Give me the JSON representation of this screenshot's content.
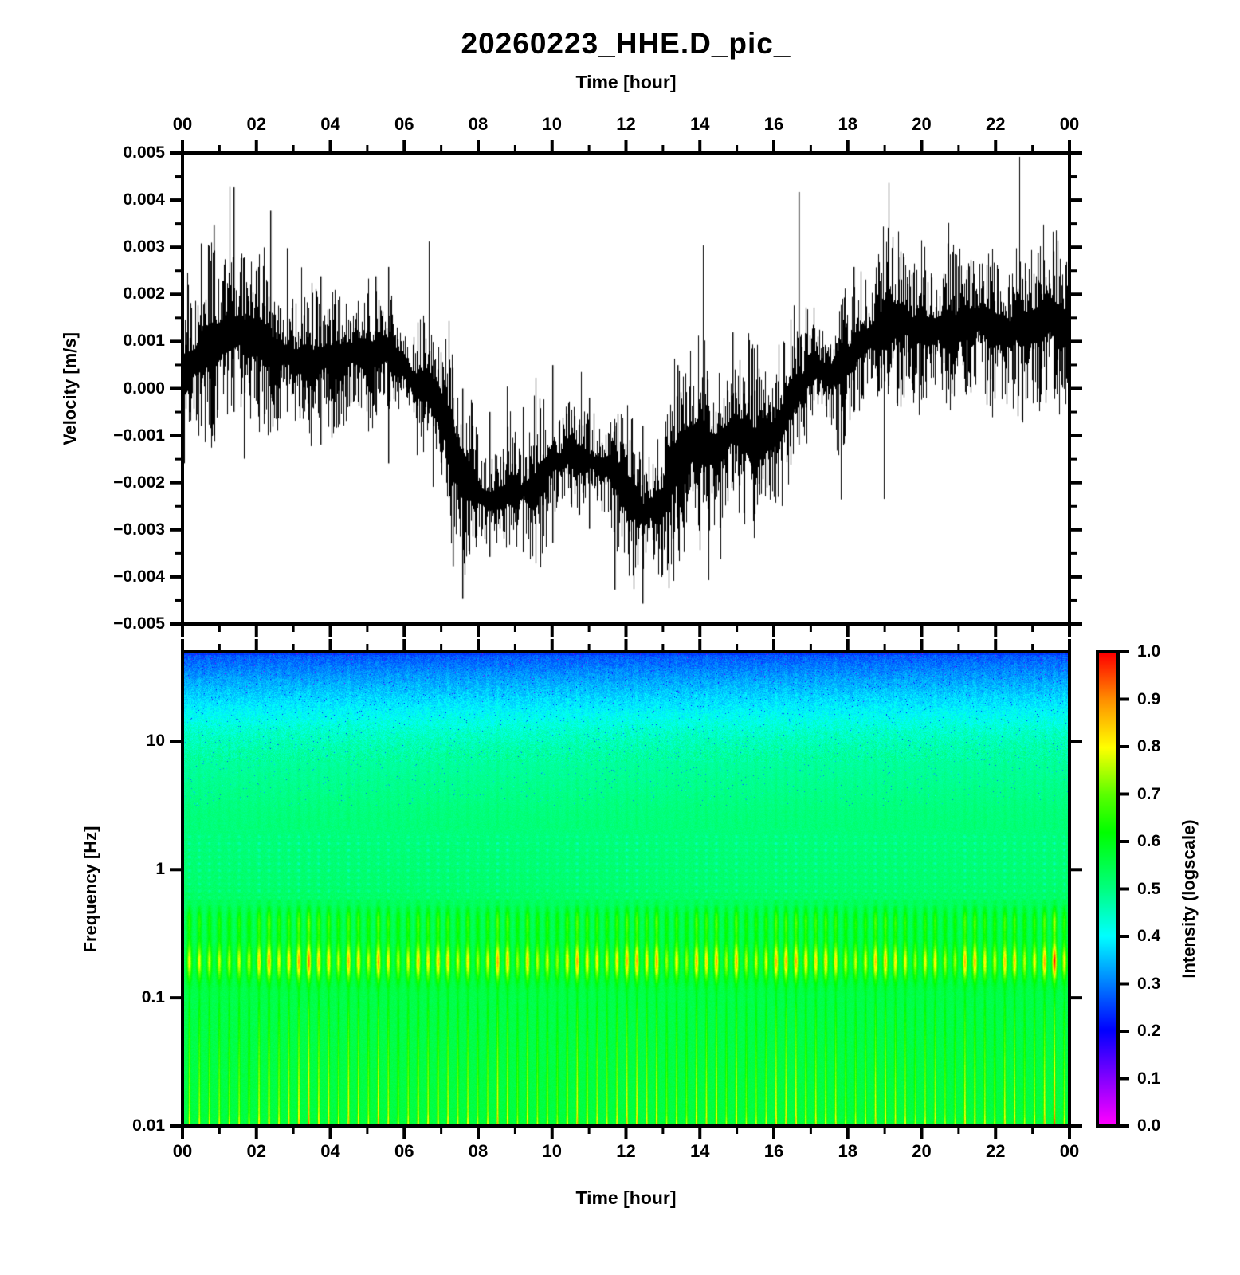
{
  "title": "20260223_HHE.D_pic_",
  "axes": {
    "top_time_label": "Time [hour]",
    "bottom_time_label": "Time [hour]",
    "time_tick_labels": [
      "00",
      "02",
      "04",
      "06",
      "08",
      "10",
      "12",
      "14",
      "16",
      "18",
      "20",
      "22",
      "00"
    ],
    "time_minor_step_hours": 1,
    "velocity_axis": {
      "label": "Velocity [m/s]",
      "tick_labels": [
        "0.005",
        "0.004",
        "0.003",
        "0.002",
        "0.001",
        "0.000",
        "−0.001",
        "−0.002",
        "−0.003",
        "−0.004",
        "−0.005"
      ],
      "minor_step": 0.0005
    },
    "frequency_axis": {
      "label": "Frequency [Hz]",
      "tick_labels": [
        "10",
        "1",
        "0.1",
        "0.01"
      ],
      "tick_values_hz": [
        10,
        1,
        0.1,
        0.01
      ]
    },
    "colorbar_axis": {
      "label": "Intensity (logscale)",
      "tick_labels": [
        "1.0",
        "0.9",
        "0.8",
        "0.7",
        "0.6",
        "0.5",
        "0.4",
        "0.3",
        "0.2",
        "0.1",
        "0.0"
      ]
    }
  },
  "chart_data": [
    {
      "type": "line",
      "name": "seismogram",
      "title": "20260223_HHE.D_pic_",
      "xlabel": "Time [hour]",
      "ylabel": "Velocity [m/s]",
      "xlim_hours": [
        0,
        24
      ],
      "ylim_m_per_s": [
        -0.005,
        0.005
      ],
      "line_color": "#000000",
      "mean_envelope_t_mean": [
        [
          0,
          0.0005
        ],
        [
          0.5,
          0.001
        ],
        [
          1,
          0.0012
        ],
        [
          1.5,
          0.0013
        ],
        [
          2,
          0.0012
        ],
        [
          2.5,
          0.0009
        ],
        [
          3,
          0.0008
        ],
        [
          3.5,
          0.0007
        ],
        [
          4,
          0.0008
        ],
        [
          4.5,
          0.0007
        ],
        [
          5,
          0.0007
        ],
        [
          5.5,
          0.0008
        ],
        [
          6,
          0.0004
        ],
        [
          6.5,
          0.0
        ],
        [
          7,
          -0.0008
        ],
        [
          7.5,
          -0.0019
        ],
        [
          8,
          -0.0022
        ],
        [
          8.5,
          -0.0021
        ],
        [
          9,
          -0.0021
        ],
        [
          9.5,
          -0.0021
        ],
        [
          10,
          -0.0015
        ],
        [
          10.5,
          -0.0014
        ],
        [
          11,
          -0.0016
        ],
        [
          11.5,
          -0.002
        ],
        [
          12,
          -0.0022
        ],
        [
          12.5,
          -0.0026
        ],
        [
          13,
          -0.0023
        ],
        [
          13.5,
          -0.0013
        ],
        [
          14,
          -0.0008
        ],
        [
          14.5,
          -0.0011
        ],
        [
          15,
          -0.0006
        ],
        [
          15.5,
          -0.0012
        ],
        [
          16,
          -0.0008
        ],
        [
          16.5,
          -0.0003
        ],
        [
          17,
          0.0001
        ],
        [
          17.5,
          0.0004
        ],
        [
          18,
          0.0007
        ],
        [
          18.5,
          0.001
        ],
        [
          19,
          0.0011
        ],
        [
          19.5,
          0.0012
        ],
        [
          20,
          0.0012
        ],
        [
          20.5,
          0.0013
        ],
        [
          21,
          0.0014
        ],
        [
          21.5,
          0.0013
        ],
        [
          22,
          0.0013
        ],
        [
          22.5,
          0.0014
        ],
        [
          23,
          0.0013
        ],
        [
          23.5,
          0.0014
        ],
        [
          24,
          0.0011
        ]
      ],
      "amplitude_envelope_t_halfwidth": [
        [
          0,
          0.0011
        ],
        [
          1,
          0.0013
        ],
        [
          2,
          0.0011
        ],
        [
          3,
          0.0008
        ],
        [
          4,
          0.0008
        ],
        [
          5,
          0.0009
        ],
        [
          6,
          0.0008
        ],
        [
          7,
          0.0011
        ],
        [
          7.5,
          0.0013
        ],
        [
          8,
          0.0008
        ],
        [
          9,
          0.0008
        ],
        [
          10,
          0.0009
        ],
        [
          11,
          0.0008
        ],
        [
          12,
          0.001
        ],
        [
          13,
          0.0011
        ],
        [
          13.5,
          0.0012
        ],
        [
          14,
          0.0011
        ],
        [
          15,
          0.0011
        ],
        [
          16,
          0.0011
        ],
        [
          17,
          0.0008
        ],
        [
          18,
          0.0009
        ],
        [
          19,
          0.001
        ],
        [
          20,
          0.001
        ],
        [
          21,
          0.0011
        ],
        [
          22,
          0.001
        ],
        [
          23,
          0.001
        ],
        [
          24,
          0.0012
        ]
      ],
      "spikes_t_hi_lo": [
        [
          0.45,
          0.0031,
          -0.0008
        ],
        [
          0.8,
          0.0035,
          -0.001
        ],
        [
          1.35,
          0.0043,
          -0.0005
        ],
        [
          1.62,
          0.0028,
          -0.0015
        ],
        [
          2.35,
          0.0038,
          -0.0002
        ],
        [
          2.8,
          0.003,
          -0.0005
        ],
        [
          3.7,
          0.0024,
          -0.0012
        ],
        [
          5.2,
          0.0024,
          -0.0005
        ],
        [
          5.55,
          0.0026,
          -0.0016
        ],
        [
          7.3,
          -0.0002,
          -0.0038
        ],
        [
          7.55,
          0.0,
          -0.0045
        ],
        [
          8.3,
          -0.0005,
          -0.0036
        ],
        [
          9.2,
          -0.0004,
          -0.0035
        ],
        [
          10.0,
          0.0005,
          -0.0033
        ],
        [
          11.0,
          -0.0002,
          -0.003
        ],
        [
          11.7,
          -0.0008,
          -0.0043
        ],
        [
          12.45,
          -0.0008,
          -0.0046
        ],
        [
          13.4,
          0.0005,
          -0.003
        ],
        [
          14.9,
          0.0012,
          -0.002
        ],
        [
          16.7,
          0.0042,
          -0.0012
        ],
        [
          18.2,
          0.0026,
          -0.0005
        ],
        [
          19.4,
          0.0028,
          0.0
        ],
        [
          20.75,
          0.0031,
          0.0
        ],
        [
          21.9,
          0.0026,
          0.0002
        ],
        [
          23.2,
          0.0029,
          0.0
        ]
      ]
    },
    {
      "type": "heatmap",
      "name": "spectrogram",
      "xlabel": "Time [hour]",
      "ylabel": "Frequency [Hz]",
      "x_range_hours": [
        0,
        24
      ],
      "freq_range_hz": [
        0.01,
        50
      ],
      "freq_scale": "log",
      "stripe_period_hours": 0.27,
      "base_intensity_profile_log10hz": [
        [
          -2.0,
          0.558
        ],
        [
          -1.3,
          0.55
        ],
        [
          -0.72,
          0.545
        ],
        [
          -0.4,
          0.53
        ],
        [
          0.0,
          0.515
        ],
        [
          0.48,
          0.5
        ],
        [
          0.9,
          0.47
        ],
        [
          1.08,
          0.44
        ],
        [
          1.3,
          0.38
        ],
        [
          1.48,
          0.33
        ],
        [
          1.7,
          0.26
        ]
      ],
      "stripe_bands": [
        {
          "name": "microseism-0.39Hz",
          "center_log10_hz": -0.41,
          "amp": 0.13,
          "sigma_log10": 0.09
        },
        {
          "name": "microseism-0.19Hz",
          "center_log10_hz": -0.72,
          "amp": 0.26,
          "sigma_log10": 0.105
        }
      ],
      "low_band_max_boost": 0.22,
      "dot_band_depth": 0.05,
      "high_band_boost": 0.012,
      "top_edge_intensity": 0.23
    },
    {
      "type": "colorbar",
      "name": "intensity-scale",
      "label": "Intensity (logscale)",
      "range": [
        0.0,
        1.0
      ],
      "tick_step": 0.1,
      "stops": [
        [
          0.0,
          "#ff00ff"
        ],
        [
          0.1,
          "#8000ff"
        ],
        [
          0.2,
          "#0000ff"
        ],
        [
          0.3,
          "#0080ff"
        ],
        [
          0.4,
          "#00ffff"
        ],
        [
          0.5,
          "#00ff80"
        ],
        [
          0.62,
          "#00ff00"
        ],
        [
          0.7,
          "#5aff00"
        ],
        [
          0.8,
          "#ffff00"
        ],
        [
          0.9,
          "#ff9000"
        ],
        [
          1.0,
          "#ff0000"
        ]
      ]
    }
  ]
}
